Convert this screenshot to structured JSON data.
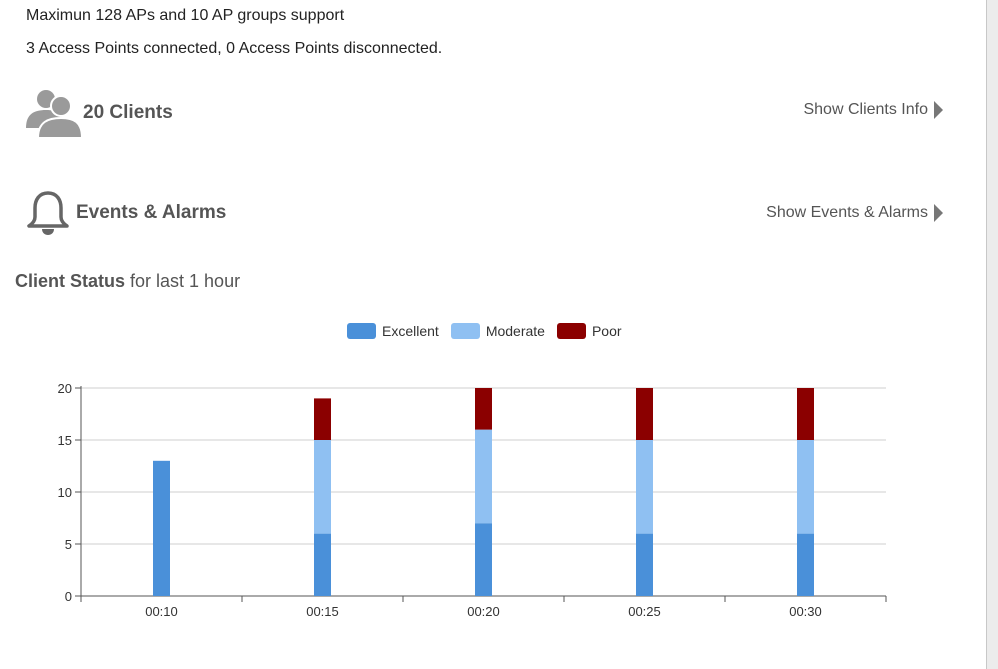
{
  "summary": {
    "max_support": "Maximun 128 APs and 10 AP groups support",
    "connection_status": "3 Access Points connected, 0 Access Points disconnected."
  },
  "clients": {
    "title": "20 Clients",
    "link_label": "Show Clients Info",
    "icon": "users-icon"
  },
  "events": {
    "title": "Events & Alarms",
    "link_label": "Show Events & Alarms",
    "icon": "bell-icon"
  },
  "client_status": {
    "title_bold": "Client Status",
    "title_rest": " for last 1 hour"
  },
  "colors": {
    "excellent": "#4a90d9",
    "moderate": "#8fc0f2",
    "poor": "#8b0000"
  },
  "chart_data": {
    "type": "bar",
    "stacked": true,
    "categories": [
      "00:10",
      "00:15",
      "00:20",
      "00:25",
      "00:30"
    ],
    "series": [
      {
        "name": "Excellent",
        "values": [
          13,
          6,
          7,
          6,
          6
        ]
      },
      {
        "name": "Moderate",
        "values": [
          0,
          9,
          9,
          9,
          9
        ]
      },
      {
        "name": "Poor",
        "values": [
          0,
          4,
          4,
          5,
          5
        ]
      }
    ],
    "ylim": [
      0,
      20
    ],
    "yticks": [
      0,
      5,
      10,
      15,
      20
    ],
    "grid": true,
    "legend_position": "top-center"
  }
}
